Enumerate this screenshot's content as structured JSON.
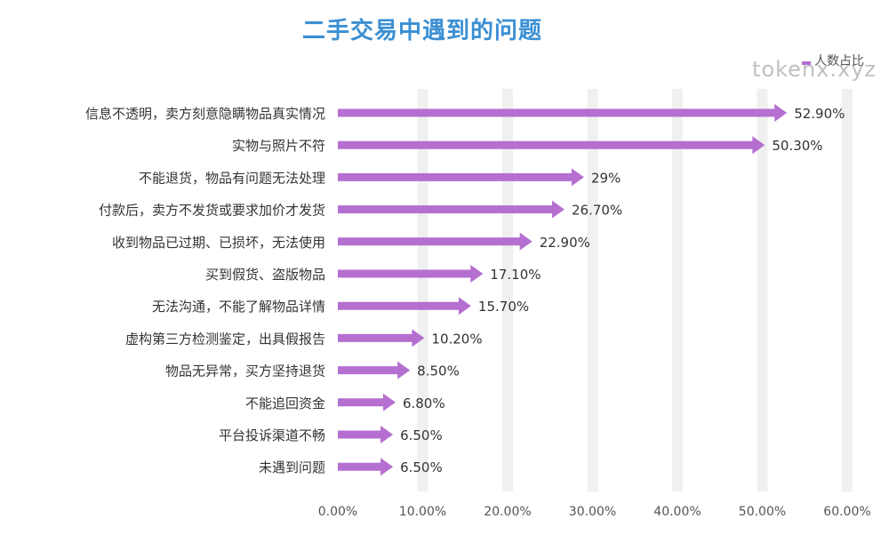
{
  "title": "二手交易中遇到的问题",
  "watermark": "tokenx.xyz",
  "colors": {
    "title": "#3b8fd3",
    "bar": "#b56fd0",
    "grid": "#f0f0f0"
  },
  "chart_data": {
    "type": "bar",
    "orientation": "horizontal",
    "title": "二手交易中遇到的问题",
    "xlabel": "",
    "ylabel": "",
    "xlim": [
      0,
      60
    ],
    "xticks": [
      0,
      10,
      20,
      30,
      40,
      50,
      60
    ],
    "xtick_labels": [
      "0.00%",
      "10.00%",
      "20.00%",
      "30.00%",
      "40.00%",
      "50.00%",
      "60.00%"
    ],
    "legend_position": "top-right",
    "grid": true,
    "categories": [
      "信息不透明，卖方刻意隐瞒物品真实情况",
      "实物与照片不符",
      "不能退货，物品有问题无法处理",
      "付款后，卖方不发货或要求加价才发货",
      "收到物品已过期、已损坏，无法使用",
      "买到假货、盗版物品",
      "无法沟通，不能了解物品详情",
      "虚构第三方检测鉴定，出具假报告",
      "物品无异常，买方坚持退货",
      "不能追回资金",
      "平台投诉渠道不畅",
      "未遇到问题"
    ],
    "series": [
      {
        "name": "人数占比",
        "values": [
          52.9,
          50.3,
          29,
          26.7,
          22.9,
          17.1,
          15.7,
          10.2,
          8.5,
          6.8,
          6.5,
          6.5
        ],
        "labels": [
          "52.90%",
          "50.30%",
          "29%",
          "26.70%",
          "22.90%",
          "17.10%",
          "15.70%",
          "10.20%",
          "8.50%",
          "6.80%",
          "6.50%",
          "6.50%"
        ]
      }
    ]
  }
}
